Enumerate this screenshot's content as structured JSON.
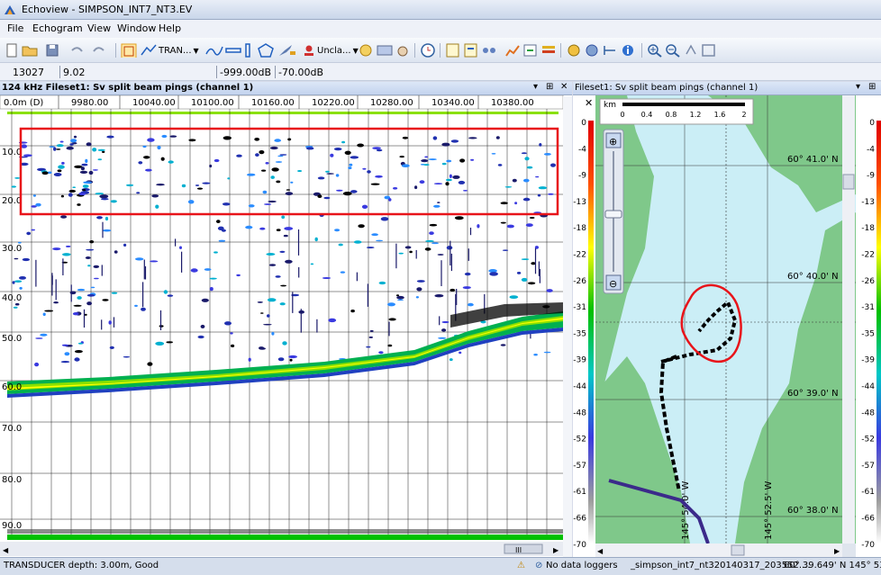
{
  "window": {
    "title": "Echoview - SIMPSON_INT7_NT3.EV"
  },
  "menu": [
    "File",
    "Echogram",
    "View",
    "Window",
    "Help"
  ],
  "toolbar": {
    "transect_label": "TRAN...",
    "class_label": "Uncla..."
  },
  "readout": {
    "ping": "13027",
    "value": "9.02",
    "threshold_min": "-999.00dB",
    "threshold_max": "-70.00dB"
  },
  "echogram": {
    "title": "124 kHz Fileset1: Sv split beam pings (channel 1)",
    "origin_label": "0.0m (D)",
    "ping_ticks": [
      "9980.00",
      "10040.00",
      "10100.00",
      "10160.00",
      "10220.00",
      "10280.00",
      "10340.00",
      "10380.00"
    ],
    "depth_ticks": [
      "10.0",
      "20.0",
      "30.0",
      "40.0",
      "50.0",
      "60.0",
      "70.0",
      "80.0",
      "90.0"
    ],
    "scroll_label": "III"
  },
  "colorbar": {
    "ticks": [
      "0",
      "-4",
      "-9",
      "-13",
      "-18",
      "-22",
      "-26",
      "-31",
      "-35",
      "-39",
      "-44",
      "-48",
      "-52",
      "-57",
      "-61",
      "-66",
      "-70"
    ],
    "colors": [
      "#ffffff",
      "#9e9e9e",
      "#5a5aa8",
      "#3a3ae0",
      "#2a8cff",
      "#00c8c8",
      "#00c000",
      "#8ae000",
      "#ffff00",
      "#ffa000",
      "#ff5000",
      "#e00000",
      "#a00000"
    ]
  },
  "map": {
    "title": "Fileset1: Sv split beam pings (channel 1)",
    "scale_unit": "km",
    "scale_ticks": [
      "0",
      "0.4",
      "0.8",
      "1.2",
      "1.6",
      "2"
    ],
    "lat_labels": [
      "60° 41.0' N",
      "60° 40.0' N",
      "60° 39.0' N",
      "60° 38.0' N"
    ],
    "lon_labels": [
      "145° 54.0' W",
      "145° 52.5' W"
    ]
  },
  "status": {
    "transducer": "TRANSDUCER depth: 3.00m, Good",
    "loggers": "No data loggers",
    "file": "_simpson_int7_nt320140317_203552....",
    "position": "60° 39.649' N 145° 53"
  }
}
